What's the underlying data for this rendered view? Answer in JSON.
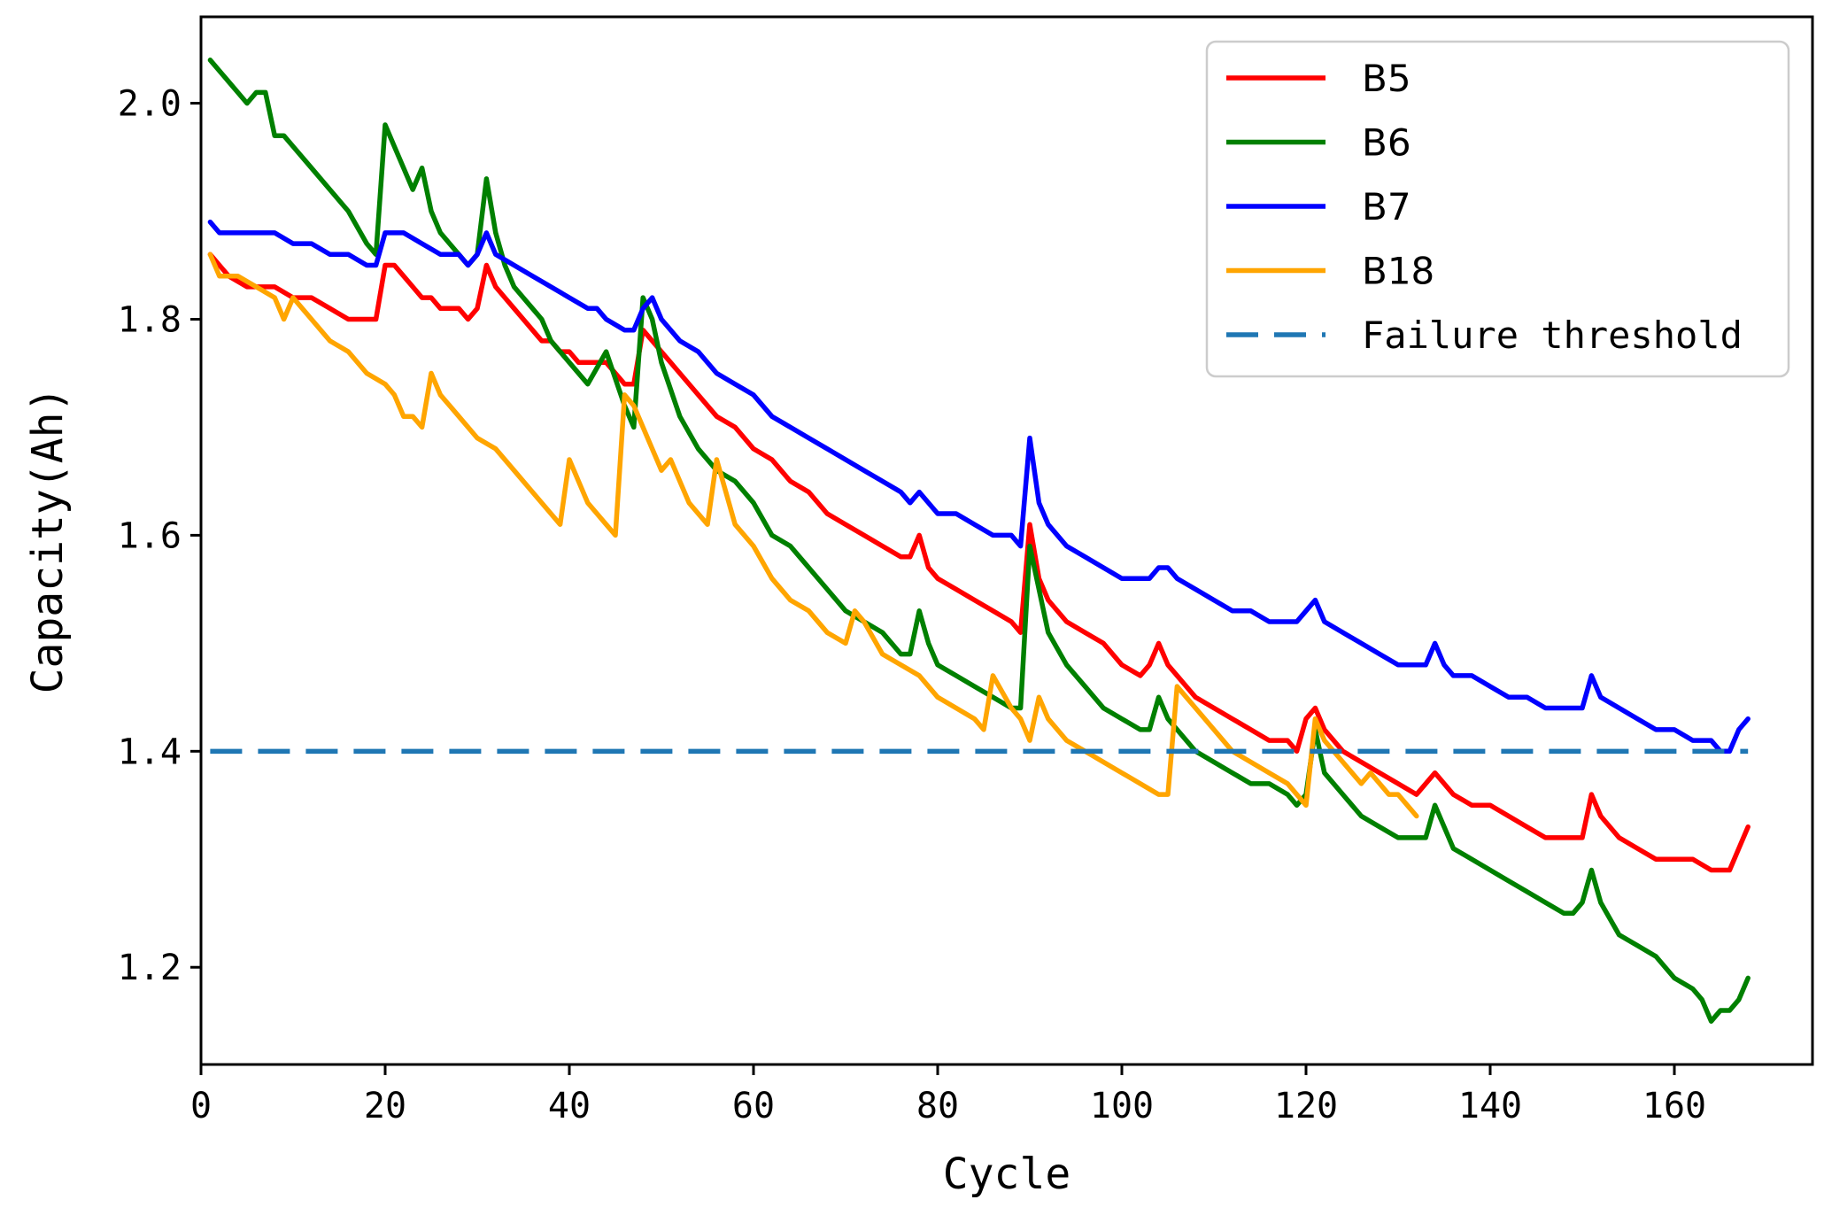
{
  "chart_data": {
    "type": "line",
    "title": "",
    "xlabel": "Cycle",
    "ylabel": "Capacity(Ah)",
    "xlim": [
      0,
      175
    ],
    "ylim": [
      1.11,
      2.08
    ],
    "xticks": [
      0,
      20,
      40,
      60,
      80,
      100,
      120,
      140,
      160
    ],
    "yticks": [
      1.2,
      1.4,
      1.6,
      1.8,
      2.0
    ],
    "ytick_labels": [
      "1.2",
      "1.4",
      "1.6",
      "1.8",
      "2.0"
    ],
    "grid": false,
    "legend_position": "top-right",
    "threshold": {
      "name": "Failure threshold",
      "value": 1.4,
      "color": "#1f77b4",
      "style": "dashed"
    },
    "series": [
      {
        "name": "B5",
        "color": "#ff0000",
        "x": [
          1,
          3,
          5,
          8,
          10,
          12,
          14,
          16,
          18,
          19,
          20,
          21,
          22,
          23,
          24,
          25,
          26,
          27,
          28,
          29,
          30,
          31,
          32,
          33,
          34,
          35,
          36,
          37,
          38,
          39,
          40,
          41,
          42,
          43,
          44,
          45,
          46,
          47,
          48,
          49,
          50,
          52,
          54,
          56,
          58,
          60,
          62,
          64,
          66,
          68,
          70,
          72,
          74,
          76,
          77,
          78,
          79,
          80,
          82,
          84,
          86,
          88,
          89,
          90,
          91,
          92,
          94,
          96,
          98,
          100,
          102,
          103,
          104,
          105,
          106,
          107,
          108,
          110,
          112,
          114,
          116,
          118,
          119,
          120,
          121,
          122,
          124,
          126,
          128,
          130,
          132,
          133,
          134,
          135,
          136,
          138,
          140,
          142,
          144,
          146,
          148,
          150,
          151,
          152,
          154,
          156,
          158,
          160,
          162,
          164,
          165,
          166,
          167,
          168
        ],
        "values": [
          1.86,
          1.84,
          1.83,
          1.83,
          1.82,
          1.82,
          1.81,
          1.8,
          1.8,
          1.8,
          1.85,
          1.85,
          1.84,
          1.83,
          1.82,
          1.82,
          1.81,
          1.81,
          1.81,
          1.8,
          1.81,
          1.85,
          1.83,
          1.82,
          1.81,
          1.8,
          1.79,
          1.78,
          1.78,
          1.77,
          1.77,
          1.76,
          1.76,
          1.76,
          1.76,
          1.75,
          1.74,
          1.74,
          1.79,
          1.78,
          1.77,
          1.75,
          1.73,
          1.71,
          1.7,
          1.68,
          1.67,
          1.65,
          1.64,
          1.62,
          1.61,
          1.6,
          1.59,
          1.58,
          1.58,
          1.6,
          1.57,
          1.56,
          1.55,
          1.54,
          1.53,
          1.52,
          1.51,
          1.61,
          1.56,
          1.54,
          1.52,
          1.51,
          1.5,
          1.48,
          1.47,
          1.48,
          1.5,
          1.48,
          1.47,
          1.46,
          1.45,
          1.44,
          1.43,
          1.42,
          1.41,
          1.41,
          1.4,
          1.43,
          1.44,
          1.42,
          1.4,
          1.39,
          1.38,
          1.37,
          1.36,
          1.37,
          1.38,
          1.37,
          1.36,
          1.35,
          1.35,
          1.34,
          1.33,
          1.32,
          1.32,
          1.32,
          1.36,
          1.34,
          1.32,
          1.31,
          1.3,
          1.3,
          1.3,
          1.29,
          1.29,
          1.29,
          1.31,
          1.33
        ]
      },
      {
        "name": "B6",
        "color": "#008000",
        "x": [
          1,
          3,
          4,
          5,
          6,
          7,
          8,
          9,
          10,
          12,
          14,
          16,
          18,
          19,
          20,
          21,
          22,
          23,
          24,
          25,
          26,
          27,
          28,
          29,
          30,
          31,
          32,
          33,
          34,
          35,
          36,
          37,
          38,
          40,
          42,
          44,
          46,
          47,
          48,
          49,
          50,
          52,
          54,
          56,
          58,
          60,
          62,
          64,
          66,
          68,
          70,
          72,
          74,
          76,
          77,
          78,
          79,
          80,
          82,
          84,
          86,
          88,
          89,
          90,
          91,
          92,
          94,
          96,
          98,
          100,
          102,
          103,
          104,
          105,
          106,
          108,
          110,
          112,
          114,
          116,
          118,
          119,
          120,
          121,
          122,
          124,
          126,
          128,
          130,
          132,
          133,
          134,
          135,
          136,
          138,
          140,
          142,
          144,
          146,
          148,
          149,
          150,
          151,
          152,
          154,
          156,
          158,
          160,
          162,
          163,
          164,
          165,
          166,
          167,
          168
        ],
        "values": [
          2.04,
          2.02,
          2.01,
          2.0,
          2.01,
          2.01,
          1.97,
          1.97,
          1.96,
          1.94,
          1.92,
          1.9,
          1.87,
          1.86,
          1.98,
          1.96,
          1.94,
          1.92,
          1.94,
          1.9,
          1.88,
          1.87,
          1.86,
          1.85,
          1.86,
          1.93,
          1.88,
          1.85,
          1.83,
          1.82,
          1.81,
          1.8,
          1.78,
          1.76,
          1.74,
          1.77,
          1.72,
          1.7,
          1.82,
          1.8,
          1.76,
          1.71,
          1.68,
          1.66,
          1.65,
          1.63,
          1.6,
          1.59,
          1.57,
          1.55,
          1.53,
          1.52,
          1.51,
          1.49,
          1.49,
          1.53,
          1.5,
          1.48,
          1.47,
          1.46,
          1.45,
          1.44,
          1.44,
          1.59,
          1.55,
          1.51,
          1.48,
          1.46,
          1.44,
          1.43,
          1.42,
          1.42,
          1.45,
          1.43,
          1.42,
          1.4,
          1.39,
          1.38,
          1.37,
          1.37,
          1.36,
          1.35,
          1.36,
          1.42,
          1.38,
          1.36,
          1.34,
          1.33,
          1.32,
          1.32,
          1.32,
          1.35,
          1.33,
          1.31,
          1.3,
          1.29,
          1.28,
          1.27,
          1.26,
          1.25,
          1.25,
          1.26,
          1.29,
          1.26,
          1.23,
          1.22,
          1.21,
          1.19,
          1.18,
          1.17,
          1.15,
          1.16,
          1.16,
          1.17,
          1.19
        ]
      },
      {
        "name": "B7",
        "color": "#0000ff",
        "x": [
          1,
          2,
          4,
          6,
          8,
          10,
          12,
          14,
          16,
          18,
          19,
          20,
          22,
          24,
          26,
          28,
          29,
          30,
          31,
          32,
          34,
          36,
          38,
          40,
          42,
          43,
          44,
          46,
          47,
          48,
          49,
          50,
          52,
          54,
          56,
          58,
          60,
          62,
          64,
          66,
          68,
          70,
          72,
          74,
          76,
          77,
          78,
          80,
          82,
          84,
          86,
          88,
          89,
          90,
          91,
          92,
          94,
          96,
          98,
          100,
          102,
          103,
          104,
          105,
          106,
          108,
          110,
          112,
          114,
          116,
          118,
          119,
          120,
          121,
          122,
          124,
          126,
          128,
          130,
          132,
          133,
          134,
          135,
          136,
          138,
          140,
          142,
          144,
          146,
          148,
          150,
          151,
          152,
          154,
          156,
          158,
          160,
          162,
          164,
          165,
          166,
          167,
          168
        ],
        "values": [
          1.89,
          1.88,
          1.88,
          1.88,
          1.88,
          1.87,
          1.87,
          1.86,
          1.86,
          1.85,
          1.85,
          1.88,
          1.88,
          1.87,
          1.86,
          1.86,
          1.85,
          1.86,
          1.88,
          1.86,
          1.85,
          1.84,
          1.83,
          1.82,
          1.81,
          1.81,
          1.8,
          1.79,
          1.79,
          1.81,
          1.82,
          1.8,
          1.78,
          1.77,
          1.75,
          1.74,
          1.73,
          1.71,
          1.7,
          1.69,
          1.68,
          1.67,
          1.66,
          1.65,
          1.64,
          1.63,
          1.64,
          1.62,
          1.62,
          1.61,
          1.6,
          1.6,
          1.59,
          1.69,
          1.63,
          1.61,
          1.59,
          1.58,
          1.57,
          1.56,
          1.56,
          1.56,
          1.57,
          1.57,
          1.56,
          1.55,
          1.54,
          1.53,
          1.53,
          1.52,
          1.52,
          1.52,
          1.53,
          1.54,
          1.52,
          1.51,
          1.5,
          1.49,
          1.48,
          1.48,
          1.48,
          1.5,
          1.48,
          1.47,
          1.47,
          1.46,
          1.45,
          1.45,
          1.44,
          1.44,
          1.44,
          1.47,
          1.45,
          1.44,
          1.43,
          1.42,
          1.42,
          1.41,
          1.41,
          1.4,
          1.4,
          1.42,
          1.43
        ]
      },
      {
        "name": "B18",
        "color": "#ffa500",
        "x": [
          1,
          2,
          4,
          6,
          8,
          9,
          10,
          11,
          12,
          14,
          16,
          18,
          20,
          21,
          22,
          23,
          24,
          25,
          26,
          28,
          30,
          32,
          34,
          36,
          38,
          39,
          40,
          41,
          42,
          43,
          44,
          45,
          46,
          47,
          48,
          49,
          50,
          51,
          52,
          53,
          54,
          55,
          56,
          57,
          58,
          60,
          62,
          64,
          66,
          68,
          70,
          71,
          72,
          74,
          76,
          78,
          80,
          82,
          84,
          85,
          86,
          88,
          89,
          90,
          91,
          92,
          94,
          96,
          98,
          100,
          102,
          104,
          105,
          106,
          107,
          108,
          110,
          112,
          114,
          116,
          118,
          119,
          120,
          121,
          122,
          124,
          125,
          126,
          127,
          128,
          129,
          130,
          131,
          132
        ],
        "values": [
          1.86,
          1.84,
          1.84,
          1.83,
          1.82,
          1.8,
          1.82,
          1.81,
          1.8,
          1.78,
          1.77,
          1.75,
          1.74,
          1.73,
          1.71,
          1.71,
          1.7,
          1.75,
          1.73,
          1.71,
          1.69,
          1.68,
          1.66,
          1.64,
          1.62,
          1.61,
          1.67,
          1.65,
          1.63,
          1.62,
          1.61,
          1.6,
          1.73,
          1.72,
          1.7,
          1.68,
          1.66,
          1.67,
          1.65,
          1.63,
          1.62,
          1.61,
          1.67,
          1.64,
          1.61,
          1.59,
          1.56,
          1.54,
          1.53,
          1.51,
          1.5,
          1.53,
          1.52,
          1.49,
          1.48,
          1.47,
          1.45,
          1.44,
          1.43,
          1.42,
          1.47,
          1.44,
          1.43,
          1.41,
          1.45,
          1.43,
          1.41,
          1.4,
          1.39,
          1.38,
          1.37,
          1.36,
          1.36,
          1.46,
          1.45,
          1.44,
          1.42,
          1.4,
          1.39,
          1.38,
          1.37,
          1.36,
          1.35,
          1.43,
          1.41,
          1.39,
          1.38,
          1.37,
          1.38,
          1.37,
          1.36,
          1.36,
          1.35,
          1.34
        ]
      }
    ]
  }
}
